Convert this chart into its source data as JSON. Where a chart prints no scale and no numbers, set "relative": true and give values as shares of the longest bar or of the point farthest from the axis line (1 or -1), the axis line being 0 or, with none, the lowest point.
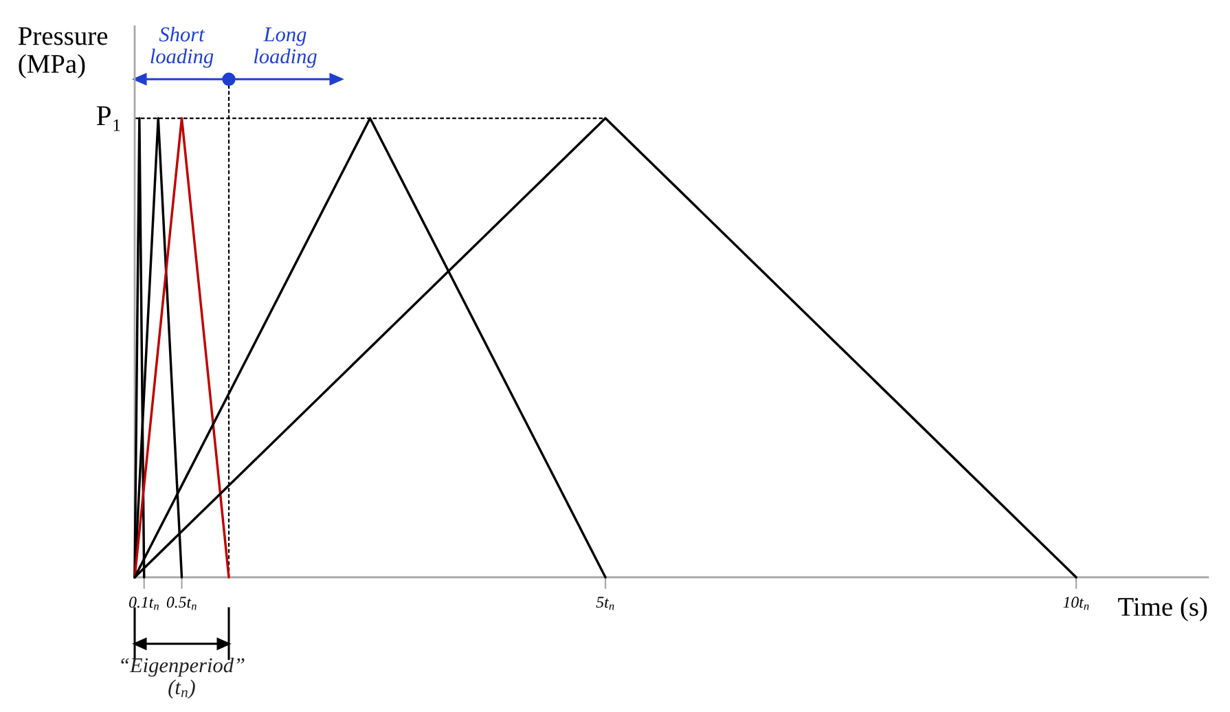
{
  "chart_data": {
    "type": "line",
    "relative": true,
    "ylabel": "Pressure\n(MPa)",
    "xlabel": "Time (s)",
    "xlim": [
      0,
      11.4
    ],
    "xticks": [
      {
        "value": 0.1,
        "label": "0.1t$_{n}$"
      },
      {
        "value": 0.5,
        "label": "0.5t$_{n}$"
      },
      {
        "value": 5,
        "label": "5t$_{n}$"
      },
      {
        "value": 10,
        "label": "10t$_{n}$"
      }
    ],
    "series": [
      {
        "x": [
          0,
          0.05,
          0.1
        ],
        "values": [
          0,
          1,
          0
        ],
        "color": "#000000"
      },
      {
        "x": [
          0,
          0.25,
          0.5
        ],
        "values": [
          0,
          1,
          0
        ],
        "color": "#000000"
      },
      {
        "x": [
          0,
          0.5,
          1
        ],
        "values": [
          0,
          1,
          0
        ],
        "color": "#c00000"
      },
      {
        "x": [
          0,
          2.5,
          5
        ],
        "values": [
          0,
          1,
          0
        ],
        "color": "#000000"
      },
      {
        "x": [
          0,
          5,
          10
        ],
        "values": [
          0,
          1,
          0
        ],
        "color": "#000000"
      }
    ],
    "ref_lines": [
      {
        "axis": "y",
        "value": 1,
        "label": "P₁",
        "line_style": "dashed",
        "color": "#000000"
      },
      {
        "axis": "x",
        "value": 1,
        "line_style": "dashed",
        "color": "#000000"
      }
    ],
    "annotations": [
      "Short\nloading",
      "Long\nloading",
      "“Eigenperiod”\n(t$_{n}$)"
    ]
  }
}
